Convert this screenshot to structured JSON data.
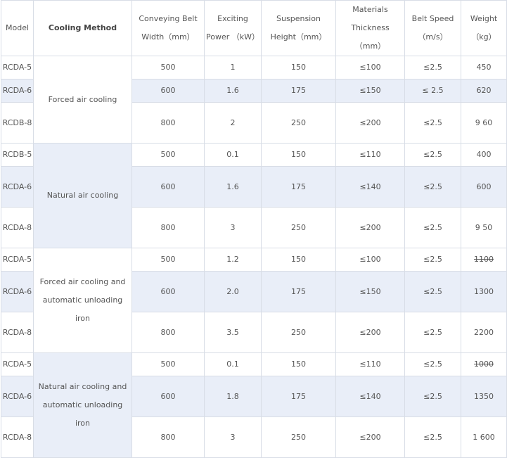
{
  "headers": {
    "model": "Model",
    "cooling_method": "Cooling Method",
    "conveying_belt_width": "Conveying Belt Width（mm）",
    "exciting_power": "Exciting Power （kW）",
    "suspension_height": "Suspension Height（mm）",
    "materials_thickness": "Materials Thickness （mm）",
    "belt_speed": "Belt Speed （m/s）",
    "weight": "Weight （kg）"
  },
  "groups": [
    {
      "cooling_method": "Forced air cooling",
      "rows": [
        {
          "model": "RCDA-5",
          "width": "500",
          "power": "1",
          "height": "150",
          "thickness": "≤100",
          "speed": "≤2.5",
          "weight": "450"
        },
        {
          "model": "RCDA-6",
          "width": "600",
          "power": "1.6",
          "height": "175",
          "thickness": "≤150",
          "speed": "≤ 2.5",
          "weight": "620"
        },
        {
          "model": "RCDB-8",
          "width": "800",
          "power": "2",
          "height": "250",
          "thickness": "≤200",
          "speed": "≤2.5",
          "weight": "9 60"
        }
      ]
    },
    {
      "cooling_method": "Natural air cooling",
      "rows": [
        {
          "model": "RCDB-5",
          "width": "500",
          "power": "0.1",
          "height": "150",
          "thickness": "≤110",
          "speed": "≤2.5",
          "weight": "400"
        },
        {
          "model": "RCDA-6",
          "width": "600",
          "power": "1.6",
          "height": "175",
          "thickness": "≤140",
          "speed": "≤2.5",
          "weight": "600"
        },
        {
          "model": "RCDA-8",
          "width": "800",
          "power": "3",
          "height": "250",
          "thickness": "≤200",
          "speed": "≤2.5",
          "weight": "9 50"
        }
      ]
    },
    {
      "cooling_method": "Forced air cooling and automatic unloading iron",
      "rows": [
        {
          "model": "RCDA-5",
          "width": "500",
          "power": "1.2",
          "height": "150",
          "thickness": "≤100",
          "speed": "≤2.5",
          "weight": "1100"
        },
        {
          "model": "RCDA-6",
          "width": "600",
          "power": "2.0",
          "height": "175",
          "thickness": "≤150",
          "speed": "≤2.5",
          "weight": "1300"
        },
        {
          "model": "RCDA-8",
          "width": "800",
          "power": "3.5",
          "height": "250",
          "thickness": "≤200",
          "speed": "≤2.5",
          "weight": "2200"
        }
      ]
    },
    {
      "cooling_method": "Natural air cooling and automatic unloading iron",
      "rows": [
        {
          "model": "RCDA-5",
          "width": "500",
          "power": "0.1",
          "height": "150",
          "thickness": "≤110",
          "speed": "≤2.5",
          "weight": "1000"
        },
        {
          "model": "RCDA-6",
          "width": "600",
          "power": "1.8",
          "height": "175",
          "thickness": "≤140",
          "speed": "≤2.5",
          "weight": "1350"
        },
        {
          "model": "RCDA-8",
          "width": "800",
          "power": "3",
          "height": "250",
          "thickness": "≤200",
          "speed": "≤2.5",
          "weight": "1 600"
        }
      ]
    }
  ],
  "colors": {
    "row_shade": "#e9eef8",
    "border": "#d8dde6",
    "text": "#555555"
  }
}
